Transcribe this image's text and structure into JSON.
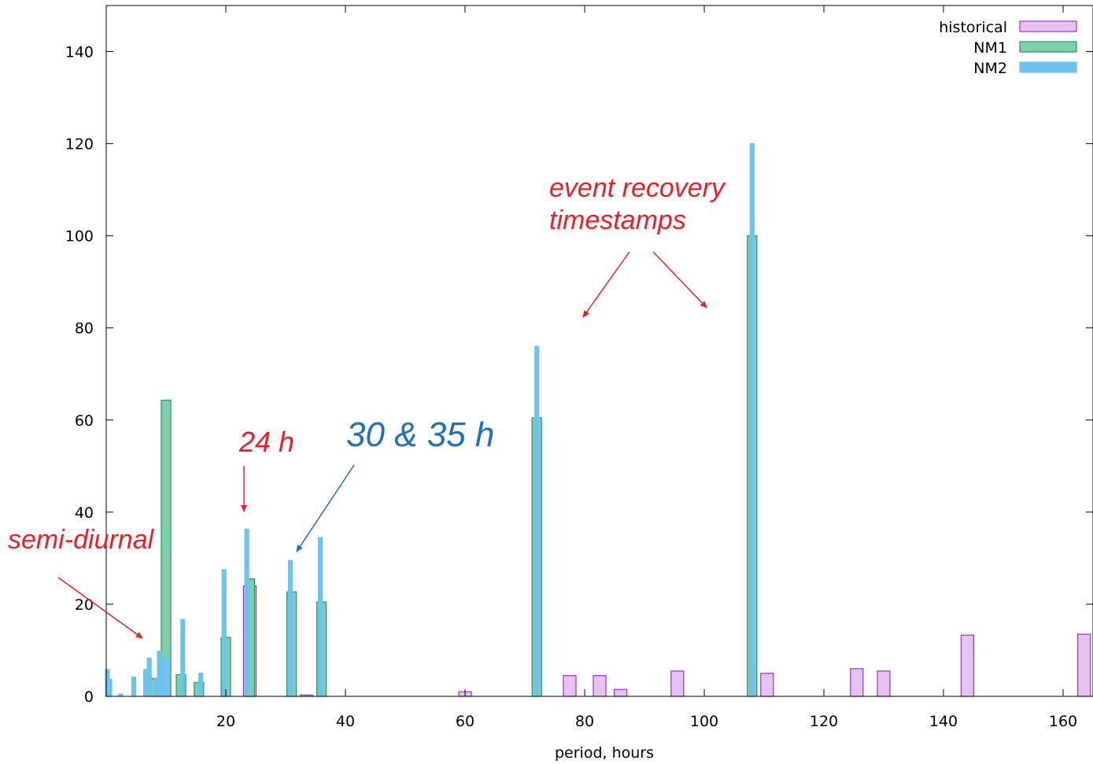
{
  "chart_data": {
    "type": "bar",
    "title": "",
    "xlabel": "period, hours",
    "ylabel": "",
    "xlim": [
      0,
      165
    ],
    "ylim": [
      0,
      150
    ],
    "xticks": [
      20,
      40,
      60,
      80,
      100,
      120,
      140,
      160
    ],
    "yticks": [
      0,
      20,
      40,
      60,
      80,
      100,
      120,
      140
    ],
    "grid": false,
    "legend_position": "top-right",
    "series": [
      {
        "name": "historical",
        "color": "#e5c2f0",
        "stroke": "#9b2fc9",
        "bars": [
          {
            "x": 24,
            "y": 24
          },
          {
            "x": 33.5,
            "y": 0.3
          },
          {
            "x": 60,
            "y": 1
          },
          {
            "x": 77.5,
            "y": 4.5
          },
          {
            "x": 82.5,
            "y": 4.5
          },
          {
            "x": 86,
            "y": 1.5
          },
          {
            "x": 95.5,
            "y": 5.5
          },
          {
            "x": 110.5,
            "y": 5
          },
          {
            "x": 125.5,
            "y": 6
          },
          {
            "x": 130,
            "y": 5.5
          },
          {
            "x": 144,
            "y": 13.3
          },
          {
            "x": 163.5,
            "y": 13.5
          }
        ]
      },
      {
        "name": "NM1",
        "color": "#7fcfaa",
        "stroke": "#20966a",
        "bars": [
          {
            "x": 8,
            "y": 3.8
          },
          {
            "x": 10,
            "y": 64.3
          },
          {
            "x": 12.5,
            "y": 4.7
          },
          {
            "x": 15.5,
            "y": 3
          },
          {
            "x": 20,
            "y": 12.8
          },
          {
            "x": 24,
            "y": 25.5
          },
          {
            "x": 31,
            "y": 22.7
          },
          {
            "x": 36,
            "y": 20.5
          },
          {
            "x": 72,
            "y": 60.5
          },
          {
            "x": 108,
            "y": 100
          }
        ]
      },
      {
        "name": "NM2",
        "color": "#6ec2ef",
        "stroke": "#6ec2ef",
        "bars": [
          {
            "x": 0.2,
            "y": 5.8
          },
          {
            "x": 0.6,
            "y": 3.7
          },
          {
            "x": 2.4,
            "y": 0.5
          },
          {
            "x": 4.6,
            "y": 4.2
          },
          {
            "x": 6.6,
            "y": 5.8
          },
          {
            "x": 7.2,
            "y": 8.3
          },
          {
            "x": 8.5,
            "y": 4
          },
          {
            "x": 8.9,
            "y": 9.8
          },
          {
            "x": 9.4,
            "y": 8
          },
          {
            "x": 10.2,
            "y": 8.3
          },
          {
            "x": 12.8,
            "y": 16.7
          },
          {
            "x": 15.8,
            "y": 5
          },
          {
            "x": 19.7,
            "y": 27.5
          },
          {
            "x": 23.5,
            "y": 36.3
          },
          {
            "x": 30.8,
            "y": 29.5
          },
          {
            "x": 35.8,
            "y": 34.5
          },
          {
            "x": 72,
            "y": 76
          },
          {
            "x": 108,
            "y": 120
          }
        ]
      }
    ],
    "annotations": [
      {
        "text": "semi-diurnal",
        "color": "#ee1c25"
      },
      {
        "text": "24 h",
        "color": "#ee1c25"
      },
      {
        "text": "30 & 35 h",
        "color": "#1e6fb8"
      },
      {
        "text": "event recovery",
        "color": "#ee1c25"
      },
      {
        "text": "timestamps",
        "color": "#ee1c25"
      }
    ]
  }
}
